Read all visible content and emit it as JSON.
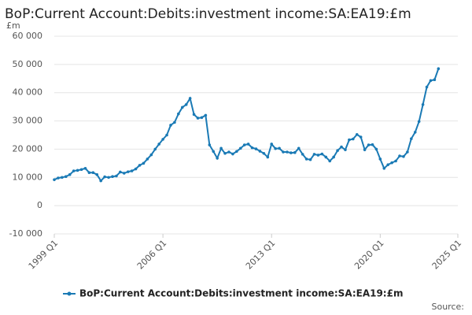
{
  "chart_data": {
    "type": "line",
    "title": "BoP:Current Account:Debits:investment income:SA:EA19:£m",
    "y_unit": "£m",
    "source": "Source:",
    "x": [
      1999,
      1999.25,
      1999.5,
      1999.75,
      2000,
      2000.25,
      2000.5,
      2000.75,
      2001,
      2001.25,
      2001.5,
      2001.75,
      2002,
      2002.25,
      2002.5,
      2002.75,
      2003,
      2003.25,
      2003.5,
      2003.75,
      2004,
      2004.25,
      2004.5,
      2004.75,
      2005,
      2005.25,
      2005.5,
      2005.75,
      2006,
      2006.25,
      2006.5,
      2006.75,
      2007,
      2007.25,
      2007.5,
      2007.75,
      2008,
      2008.25,
      2008.5,
      2008.75,
      2009,
      2009.25,
      2009.5,
      2009.75,
      2010,
      2010.25,
      2010.5,
      2010.75,
      2011,
      2011.25,
      2011.5,
      2011.75,
      2012,
      2012.25,
      2012.5,
      2012.75,
      2013,
      2013.25,
      2013.5,
      2013.75,
      2014,
      2014.25,
      2014.5,
      2014.75,
      2015,
      2015.25,
      2015.5,
      2015.75,
      2016,
      2016.25,
      2016.5,
      2016.75,
      2017,
      2017.25,
      2017.5,
      2017.75,
      2018,
      2018.25,
      2018.5,
      2018.75,
      2019,
      2019.25,
      2019.5,
      2019.75,
      2020,
      2020.25,
      2020.5,
      2020.75,
      2021,
      2021.25,
      2021.5,
      2021.75,
      2022,
      2022.25,
      2022.5,
      2022.75,
      2023,
      2023.25,
      2023.5,
      2023.75
    ],
    "series": [
      {
        "name": "BoP:Current Account:Debits:investment income:SA:EA19:£m",
        "color": "#1a7ab5",
        "values": [
          9200,
          9800,
          10000,
          10300,
          11000,
          12300,
          12500,
          12800,
          13200,
          11700,
          11700,
          11000,
          8800,
          10200,
          10000,
          10300,
          10500,
          11900,
          11500,
          12000,
          12300,
          13000,
          14300,
          15000,
          16500,
          18000,
          20000,
          21800,
          23500,
          25000,
          28500,
          29500,
          32500,
          34800,
          35800,
          38000,
          32300,
          31000,
          31200,
          32000,
          21500,
          19200,
          16800,
          20300,
          18500,
          19000,
          18300,
          19200,
          20300,
          21500,
          21800,
          20500,
          20100,
          19300,
          18500,
          17200,
          21800,
          20200,
          20300,
          19000,
          19000,
          18700,
          18800,
          20300,
          18200,
          16500,
          16300,
          18200,
          17900,
          18300,
          17200,
          15800,
          17200,
          19500,
          20800,
          19800,
          23300,
          23600,
          25200,
          24300,
          19800,
          21500,
          21600,
          20000,
          16500,
          13200,
          14500,
          15200,
          15800,
          17600,
          17400,
          19000,
          23700,
          26000,
          29800,
          35800,
          42000,
          44300,
          44600,
          48500
        ]
      }
    ],
    "xlim": [
      1999,
      2025
    ],
    "xticks": [
      {
        "value": 1999,
        "label": "1999 Q1"
      },
      {
        "value": 2006,
        "label": "2006 Q1"
      },
      {
        "value": 2013,
        "label": "2013 Q1"
      },
      {
        "value": 2020,
        "label": "2020 Q1"
      },
      {
        "value": 2025,
        "label": "2025 Q1"
      }
    ],
    "ylim": [
      -10000,
      60000
    ],
    "yticks": [
      {
        "value": -10000,
        "label": "-10 000"
      },
      0,
      {
        "value": 10000,
        "label": "10 000"
      },
      {
        "value": 20000,
        "label": "20 000"
      },
      {
        "value": 30000,
        "label": "30 000"
      },
      {
        "value": 40000,
        "label": "40 000"
      },
      {
        "value": 50000,
        "label": "50 000"
      },
      {
        "value": 60000,
        "label": "60 000"
      }
    ],
    "grid": true
  }
}
